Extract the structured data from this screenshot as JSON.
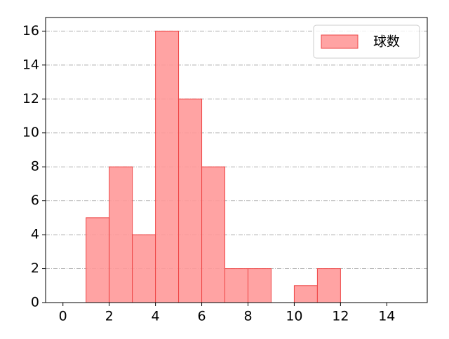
{
  "chart_data": {
    "type": "histogram",
    "bins": [
      1,
      2,
      3,
      4,
      5,
      6,
      7,
      8,
      9,
      10,
      11,
      12
    ],
    "series": [
      {
        "name": "球数",
        "color": "#ff9999",
        "edgecolor": "#ee4444",
        "values": [
          5,
          8,
          4,
          16,
          12,
          8,
          2,
          2,
          0,
          1,
          2
        ]
      }
    ],
    "xlim": [
      -0.75,
      15.75
    ],
    "xticks": [
      0,
      2,
      4,
      6,
      8,
      10,
      12,
      14
    ],
    "ylim": [
      0,
      16.8
    ],
    "yticks": [
      0,
      2,
      4,
      6,
      8,
      10,
      12,
      14,
      16
    ],
    "grid": true,
    "legend": "upper right"
  }
}
